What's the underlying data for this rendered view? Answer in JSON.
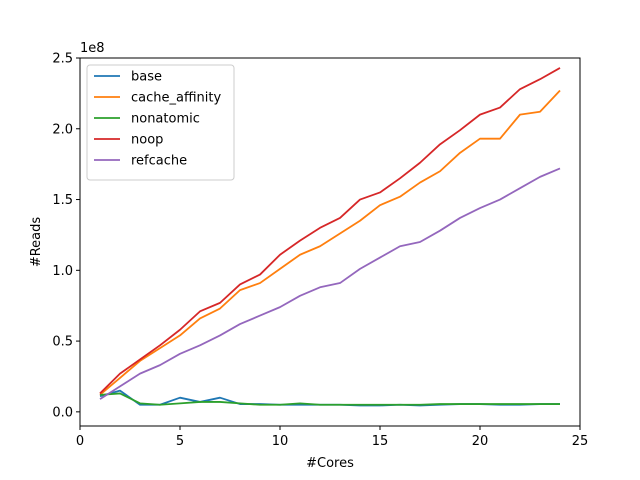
{
  "chart_data": {
    "type": "line",
    "title": "",
    "xlabel": "#Cores",
    "ylabel": "#Reads",
    "y_offset_label": "1e8",
    "xlim": [
      0,
      25
    ],
    "ylim": [
      -0.1,
      2.5
    ],
    "xticks": [
      0,
      5,
      10,
      15,
      20,
      25
    ],
    "yticks": [
      0.0,
      0.5,
      1.0,
      1.5,
      2.0,
      2.5
    ],
    "ytick_labels": [
      "0.0",
      "0.5",
      "1.0",
      "1.5",
      "2.0",
      "2.5"
    ],
    "grid": false,
    "legend_position": "top-left",
    "x": [
      1,
      2,
      3,
      4,
      5,
      6,
      7,
      8,
      9,
      10,
      11,
      12,
      13,
      14,
      15,
      16,
      17,
      18,
      19,
      20,
      21,
      22,
      23,
      24
    ],
    "series": [
      {
        "name": "base",
        "color": "#1f77b4",
        "values": [
          0.11,
          0.15,
          0.05,
          0.05,
          0.1,
          0.07,
          0.1,
          0.055,
          0.055,
          0.05,
          0.05,
          0.05,
          0.05,
          0.045,
          0.045,
          0.05,
          0.045,
          0.05,
          0.055,
          0.055,
          0.05,
          0.05,
          0.055,
          0.055
        ]
      },
      {
        "name": "cache_affinity",
        "color": "#ff7f0e",
        "values": [
          0.12,
          0.24,
          0.36,
          0.45,
          0.54,
          0.66,
          0.73,
          0.86,
          0.91,
          1.01,
          1.11,
          1.17,
          1.26,
          1.35,
          1.46,
          1.52,
          1.62,
          1.7,
          1.83,
          1.93,
          1.93,
          2.1,
          2.12,
          2.27
        ]
      },
      {
        "name": "nonatomic",
        "color": "#2ca02c",
        "values": [
          0.12,
          0.13,
          0.06,
          0.05,
          0.06,
          0.07,
          0.07,
          0.06,
          0.05,
          0.05,
          0.06,
          0.05,
          0.05,
          0.05,
          0.05,
          0.05,
          0.05,
          0.055,
          0.055,
          0.055,
          0.055,
          0.055,
          0.055,
          0.055
        ]
      },
      {
        "name": "noop",
        "color": "#d62728",
        "values": [
          0.13,
          0.27,
          0.37,
          0.47,
          0.58,
          0.71,
          0.77,
          0.9,
          0.97,
          1.11,
          1.21,
          1.3,
          1.37,
          1.5,
          1.55,
          1.65,
          1.76,
          1.89,
          1.99,
          2.1,
          2.15,
          2.28,
          2.35,
          2.43
        ]
      },
      {
        "name": "refcache",
        "color": "#9467bd",
        "values": [
          0.09,
          0.18,
          0.27,
          0.33,
          0.41,
          0.47,
          0.54,
          0.62,
          0.68,
          0.74,
          0.82,
          0.88,
          0.91,
          1.01,
          1.09,
          1.17,
          1.2,
          1.28,
          1.37,
          1.44,
          1.5,
          1.58,
          1.66,
          1.72
        ]
      }
    ]
  }
}
